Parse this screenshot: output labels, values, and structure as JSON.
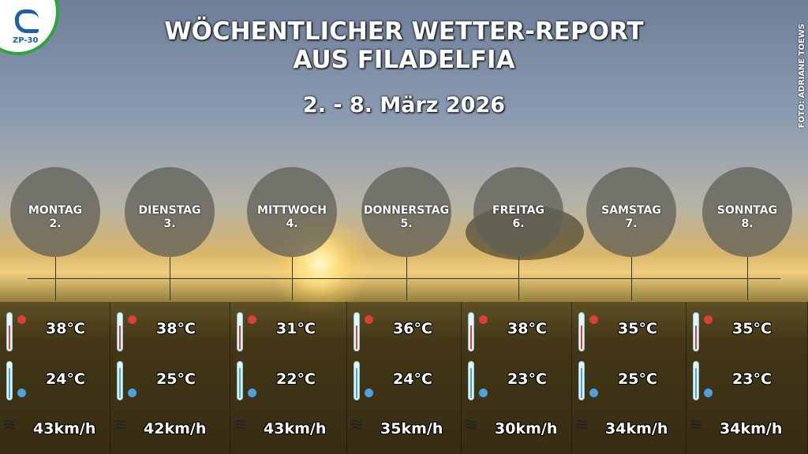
{
  "logo": {
    "text": "ZP-30"
  },
  "title": {
    "line1": "WÖCHENTLICHER WETTER-REPORT",
    "line2": "AUS FILADELFIA",
    "dates": "2. - 8. März 2026"
  },
  "credit": "FOTO: ADRIANE TOEWS",
  "colors": {
    "hot": "#d9413b",
    "cold": "#4aa3df"
  },
  "days": [
    {
      "name": "MONTAG",
      "date": "2.",
      "max": "38°C",
      "min": "24°C",
      "wind": "43km/h"
    },
    {
      "name": "DIENSTAG",
      "date": "3.",
      "max": "38°C",
      "min": "25°C",
      "wind": "42km/h"
    },
    {
      "name": "MITTWOCH",
      "date": "4.",
      "max": "31°C",
      "min": "22°C",
      "wind": "43km/h"
    },
    {
      "name": "DONNERSTAG",
      "date": "5.",
      "max": "36°C",
      "min": "24°C",
      "wind": "35km/h"
    },
    {
      "name": "FREITAG",
      "date": "6.",
      "max": "38°C",
      "min": "23°C",
      "wind": "30km/h"
    },
    {
      "name": "SAMSTAG",
      "date": "7.",
      "max": "35°C",
      "min": "25°C",
      "wind": "34km/h"
    },
    {
      "name": "SONNTAG",
      "date": "8.",
      "max": "35°C",
      "min": "23°C",
      "wind": "34km/h"
    }
  ]
}
